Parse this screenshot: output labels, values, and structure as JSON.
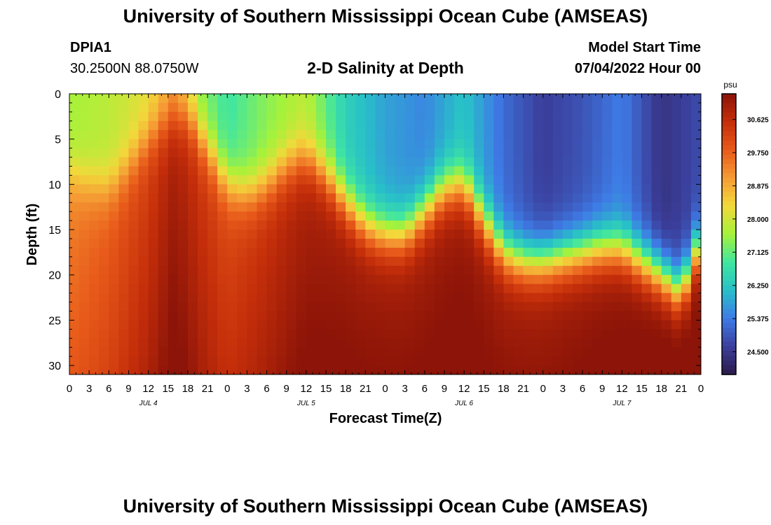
{
  "page": {
    "title_top": "University of Southern Mississippi Ocean Cube (AMSEAS)",
    "title_bottom": "University of Southern Mississippi Ocean Cube (AMSEAS)",
    "station_id": "DPIA1",
    "coordinates": "30.2500N  88.0750W",
    "chart_title": "2-D Salinity at Depth",
    "model_start_label": "Model Start Time",
    "model_start_value": "07/04/2022 Hour 00"
  },
  "chart_data": {
    "type": "heatmap",
    "title": "2-D Salinity at Depth",
    "xlabel": "Forecast Time(Z)",
    "ylabel": "Depth (ft)",
    "x_range_hours": [
      0,
      96
    ],
    "y_range_ft": [
      0,
      31
    ],
    "x_tick_labels": [
      "0",
      "3",
      "6",
      "9",
      "12",
      "15",
      "18",
      "21",
      "0",
      "3",
      "6",
      "9",
      "12",
      "15",
      "18",
      "21",
      "0",
      "3",
      "6",
      "9",
      "12",
      "15",
      "18",
      "21",
      "0",
      "3",
      "6",
      "9",
      "12",
      "15",
      "18",
      "21",
      "0"
    ],
    "day_labels": [
      {
        "label": "JUL 4",
        "hour": 12
      },
      {
        "label": "JUL 5",
        "hour": 36
      },
      {
        "label": "JUL 6",
        "hour": 60
      },
      {
        "label": "JUL 7",
        "hour": 84
      }
    ],
    "y_ticks": [
      0,
      5,
      10,
      15,
      20,
      25,
      30
    ],
    "colorbar": {
      "unit": "psu",
      "range": [
        23.9,
        31.3
      ],
      "ticks": [
        "30.625",
        "29.750",
        "28.875",
        "28.000",
        "27.125",
        "26.250",
        "25.375",
        "24.500"
      ]
    },
    "halocline": {
      "hours": [
        0,
        3,
        6,
        9,
        12,
        15,
        18,
        21,
        24,
        27,
        30,
        33,
        36,
        39,
        42,
        45,
        48,
        51,
        54,
        57,
        60,
        63,
        66,
        69,
        72,
        75,
        78,
        81,
        84,
        87,
        90,
        93,
        96
      ],
      "depth_ft": [
        9,
        10,
        10.5,
        8,
        5,
        3,
        2.5,
        6,
        10,
        11,
        10,
        8,
        7,
        9,
        12,
        14.5,
        15.5,
        15.5,
        13,
        10.5,
        10,
        14,
        17.5,
        18.5,
        18.5,
        18,
        17.5,
        17,
        17,
        18.5,
        20,
        22,
        16
      ]
    },
    "surface_salinity_psu": {
      "hours": [
        0,
        6,
        12,
        16,
        20,
        24,
        30,
        36,
        42,
        48,
        54,
        60,
        66,
        72,
        78,
        84,
        90,
        96
      ],
      "values": [
        27.6,
        27.8,
        28.2,
        29.0,
        27.4,
        26.8,
        27.4,
        27.8,
        26.4,
        25.8,
        25.5,
        26.2,
        25.2,
        24.6,
        24.9,
        25.4,
        24.4,
        24.8
      ]
    },
    "bottom_salinity_psu": {
      "hours": [
        0,
        6,
        12,
        16,
        20,
        24,
        30,
        36,
        42,
        48,
        54,
        60,
        66,
        72,
        78,
        84,
        90,
        96
      ],
      "values": [
        29.4,
        29.8,
        30.3,
        30.9,
        30.4,
        30.1,
        30.5,
        30.9,
        31.0,
        31.0,
        31.0,
        31.1,
        31.0,
        31.0,
        31.1,
        31.2,
        31.3,
        31.3
      ]
    },
    "colors": {
      "scale": [
        "#2b1a4a",
        "#3b3f9c",
        "#3e7be6",
        "#28c0c8",
        "#40e6a0",
        "#a6f23a",
        "#f2d93b",
        "#f59b34",
        "#e85a1a",
        "#c42e0a",
        "#8c1408"
      ]
    }
  }
}
